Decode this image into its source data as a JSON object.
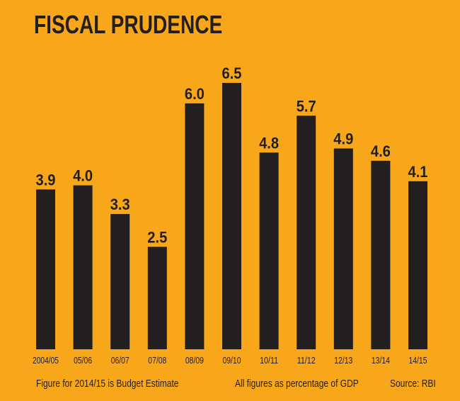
{
  "chart_data": {
    "type": "bar",
    "title": "FISCAL PRUDENCE",
    "categories": [
      "2004/05",
      "05/06",
      "06/07",
      "07/08",
      "08/09",
      "09/10",
      "10/11",
      "11/12",
      "12/13",
      "13/14",
      "14/15"
    ],
    "values": [
      3.9,
      4.0,
      3.3,
      2.5,
      6.0,
      6.5,
      4.8,
      5.7,
      4.9,
      4.6,
      4.1
    ],
    "data_labels": [
      "3.9",
      "4.0",
      "3.3",
      "2.5",
      "6.0",
      "6.5",
      "4.8",
      "5.7",
      "4.9",
      "4.6",
      "4.1"
    ],
    "xlabel": "",
    "ylabel": "",
    "ylim": [
      0,
      6.5
    ],
    "grid": false,
    "colors": {
      "background": "#F8A71B",
      "bar": "#231F20"
    }
  },
  "footer": {
    "note": "Figure for 2014/15 is Budget Estimate",
    "units": "All figures as percentage of GDP",
    "source": "Source: RBI"
  }
}
